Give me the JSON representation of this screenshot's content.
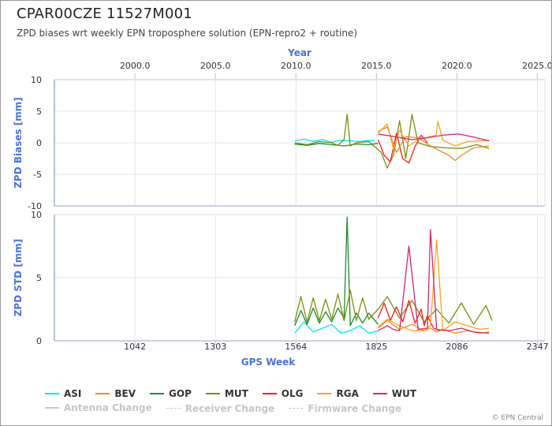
{
  "title": "CPAR00CZE 11527M001",
  "subtitle": "ZPD biases wrt weekly EPN troposphere solution (EPN-repro2 + routine)",
  "credit": "© EPN Central",
  "top_axis": {
    "label": "Year",
    "ticks": [
      "2000.0",
      "2005.0",
      "2010.0",
      "2015.0",
      "2020.0",
      "2025.0"
    ]
  },
  "bottom_axis": {
    "label": "GPS Week",
    "ticks": [
      "1042",
      "1303",
      "1564",
      "1825",
      "2086",
      "2347"
    ]
  },
  "legend": [
    {
      "label": "ASI",
      "color": "#00e5ee",
      "style": "solid",
      "active": true
    },
    {
      "label": "BEV",
      "color": "#f08a24",
      "style": "solid",
      "active": true
    },
    {
      "label": "GOP",
      "color": "#1f8a2a",
      "style": "solid",
      "active": true
    },
    {
      "label": "MUT",
      "color": "#7a8f10",
      "style": "solid",
      "active": true
    },
    {
      "label": "OLG",
      "color": "#ff1a1a",
      "style": "solid",
      "active": true
    },
    {
      "label": "RGA",
      "color": "#ffa21f",
      "style": "solid",
      "active": true
    },
    {
      "label": "WUT",
      "color": "#d6266e",
      "style": "solid",
      "active": true
    },
    {
      "label": "Antenna Change",
      "color": "#c8c8c8",
      "style": "solid",
      "active": false
    },
    {
      "label": "Receiver Change",
      "color": "#c8c8c8",
      "style": "dashed",
      "active": false
    },
    {
      "label": "Firmware Change",
      "color": "#c8c8c8",
      "style": "dashed",
      "active": false
    }
  ],
  "chart_data": [
    {
      "type": "line",
      "panel": "bias",
      "ylabel": "ZPD Biases [mm]",
      "xlabel": "GPS Week",
      "xlim": [
        781,
        2371
      ],
      "ylim": [
        -10,
        10
      ],
      "yticks": [
        -10,
        -5,
        0,
        5,
        10
      ],
      "grid": true,
      "series": [
        {
          "name": "ASI",
          "x": [
            1560,
            1590,
            1620,
            1650,
            1680,
            1710,
            1740,
            1770,
            1800,
            1820
          ],
          "y": [
            0.3,
            0.6,
            0.2,
            0.5,
            0.1,
            0.4,
            0.3,
            0.2,
            0.4,
            0.3
          ]
        },
        {
          "name": "GOP",
          "x": [
            1560,
            1600,
            1640,
            1680,
            1720,
            1760,
            1800,
            1830
          ],
          "y": [
            -0.2,
            -0.4,
            -0.1,
            -0.3,
            -0.5,
            -0.2,
            -0.3,
            -0.1
          ]
        },
        {
          "name": "MUT",
          "x": [
            1560,
            1600,
            1640,
            1680,
            1700,
            1720,
            1730,
            1740,
            1760,
            1800,
            1840,
            1860,
            1880,
            1900,
            1920,
            1940,
            1960,
            2000,
            2050,
            2100,
            2150,
            2190
          ],
          "y": [
            0.0,
            -0.3,
            0.2,
            0.0,
            -0.4,
            0.5,
            4.5,
            -0.5,
            0.0,
            0.2,
            -1.5,
            -4.0,
            -2.0,
            3.5,
            -2.5,
            4.5,
            0.0,
            -0.6,
            -0.8,
            -0.9,
            -0.3,
            -0.9
          ]
        },
        {
          "name": "OLG",
          "x": [
            1830,
            1850,
            1870,
            1890,
            1910,
            1930,
            1950,
            1970,
            1990
          ],
          "y": [
            0.5,
            -2.0,
            -3.0,
            1.5,
            -2.5,
            -3.2,
            -0.6,
            1.2,
            0.0
          ]
        },
        {
          "name": "BEV",
          "x": [
            1830,
            1860,
            1890,
            1920,
            1960,
            2000,
            2040,
            2060,
            2080,
            2100,
            2140,
            2190
          ],
          "y": [
            1.8,
            2.5,
            -1.5,
            1.0,
            0.8,
            -0.5,
            -1.5,
            -2.0,
            -2.8,
            -2.0,
            -0.8,
            -0.5
          ]
        },
        {
          "name": "RGA",
          "x": [
            1830,
            1860,
            1880,
            1900,
            1930,
            1960,
            2000,
            2018,
            2024,
            2040,
            2080,
            2120,
            2160,
            2190
          ],
          "y": [
            1.5,
            3.0,
            -1.0,
            2.0,
            -0.5,
            0.5,
            1.0,
            1.2,
            3.4,
            0.4,
            -0.5,
            0.2,
            0.3,
            0.4
          ]
        },
        {
          "name": "WUT",
          "x": [
            1830,
            1880,
            1940,
            1990,
            2040,
            2090,
            2140,
            2190
          ],
          "y": [
            1.4,
            1.0,
            0.5,
            0.8,
            1.2,
            1.4,
            0.9,
            0.3
          ]
        }
      ]
    },
    {
      "type": "line",
      "panel": "std",
      "ylabel": "ZPD STD [mm]",
      "xlabel": "GPS Week",
      "xlim": [
        781,
        2371
      ],
      "ylim": [
        0,
        10
      ],
      "yticks": [
        0,
        5,
        10
      ],
      "grid": true,
      "series": [
        {
          "name": "ASI",
          "x": [
            1560,
            1590,
            1620,
            1650,
            1680,
            1710,
            1740,
            1770,
            1800,
            1830
          ],
          "y": [
            0.6,
            1.5,
            0.7,
            1.0,
            1.3,
            0.6,
            0.8,
            1.2,
            0.6,
            0.8
          ]
        },
        {
          "name": "GOP",
          "x": [
            1560,
            1580,
            1600,
            1620,
            1640,
            1660,
            1680,
            1700,
            1720,
            1730,
            1740,
            1760,
            1780,
            1800,
            1830
          ],
          "y": [
            1.2,
            2.4,
            1.3,
            2.6,
            1.4,
            2.3,
            1.5,
            2.6,
            1.8,
            9.8,
            1.2,
            2.2,
            1.4,
            2.2,
            1.3
          ]
        },
        {
          "name": "MUT",
          "x": [
            1560,
            1580,
            1600,
            1620,
            1640,
            1660,
            1680,
            1700,
            1720,
            1740,
            1760,
            1780,
            1800,
            1830,
            1860,
            1900,
            1940,
            1980,
            2020,
            2060,
            2100,
            2140,
            2180,
            2200
          ],
          "y": [
            1.5,
            3.5,
            1.5,
            3.4,
            1.6,
            3.3,
            1.7,
            3.7,
            1.6,
            4.0,
            1.6,
            3.4,
            1.7,
            2.5,
            3.5,
            1.8,
            3.2,
            1.5,
            2.5,
            1.4,
            3.0,
            1.3,
            2.8,
            1.6
          ]
        },
        {
          "name": "OLG",
          "x": [
            1830,
            1850,
            1870,
            1890,
            1910,
            1930,
            1950,
            1970,
            1980,
            1990,
            2010,
            2030
          ],
          "y": [
            1.8,
            3.0,
            1.6,
            2.7,
            1.5,
            3.2,
            1.4,
            2.5,
            1.2,
            2.0,
            1.0,
            0.8
          ]
        },
        {
          "name": "BEV",
          "x": [
            1830,
            1860,
            1900,
            1940,
            1980,
            2000,
            2020,
            2040,
            2080,
            2120,
            2160,
            2190
          ],
          "y": [
            1.0,
            1.6,
            0.9,
            1.3,
            0.8,
            1.0,
            0.7,
            0.9,
            0.6,
            0.8,
            0.6,
            0.7
          ]
        },
        {
          "name": "RGA",
          "x": [
            1830,
            1860,
            1900,
            1940,
            1980,
            2000,
            2020,
            2040,
            2080,
            2120,
            2160,
            2190
          ],
          "y": [
            1.1,
            1.7,
            1.2,
            0.8,
            0.8,
            1.2,
            8.0,
            0.8,
            1.5,
            1.2,
            0.9,
            1.0
          ]
        },
        {
          "name": "WUT",
          "x": [
            1830,
            1860,
            1880,
            1900,
            1930,
            1960,
            1990,
            2000,
            2020,
            2060,
            2100,
            2140,
            2190
          ],
          "y": [
            0.8,
            1.2,
            0.9,
            0.8,
            7.5,
            0.9,
            1.0,
            8.8,
            0.9,
            0.8,
            1.0,
            0.7,
            0.6
          ]
        }
      ]
    }
  ]
}
